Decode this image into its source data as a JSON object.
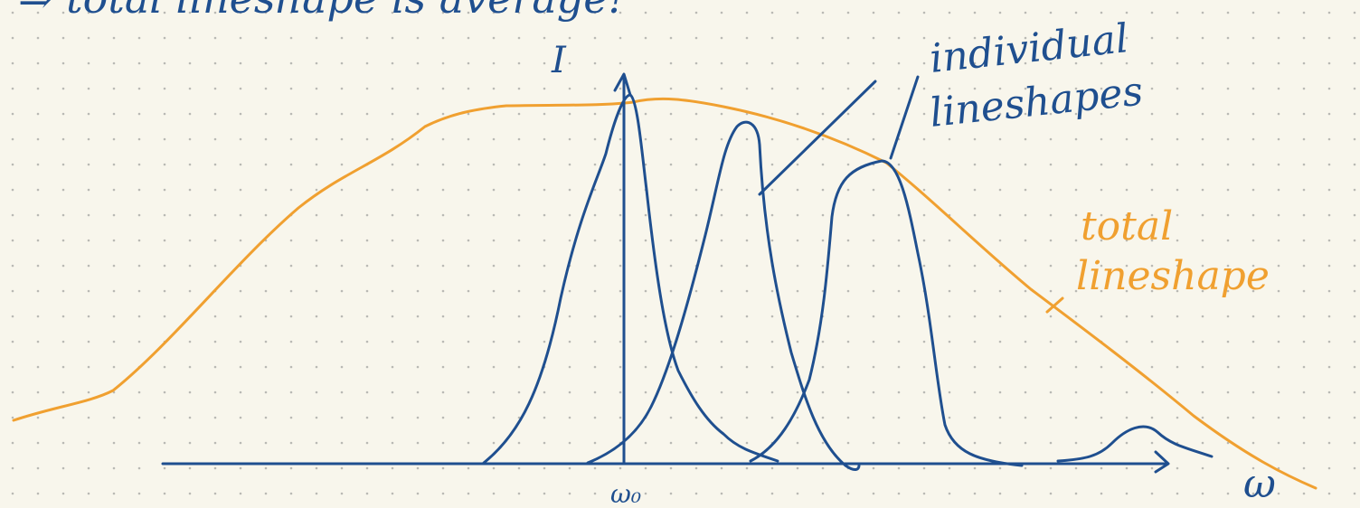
{
  "header": {
    "text": "⇒ total lineshape is average!"
  },
  "axes": {
    "y_label": "I",
    "x_label": "ω",
    "center_label": "ω₀"
  },
  "annotations": {
    "individual": [
      "individual",
      "lineshapes"
    ],
    "total": [
      "total",
      "lineshape"
    ]
  }
}
